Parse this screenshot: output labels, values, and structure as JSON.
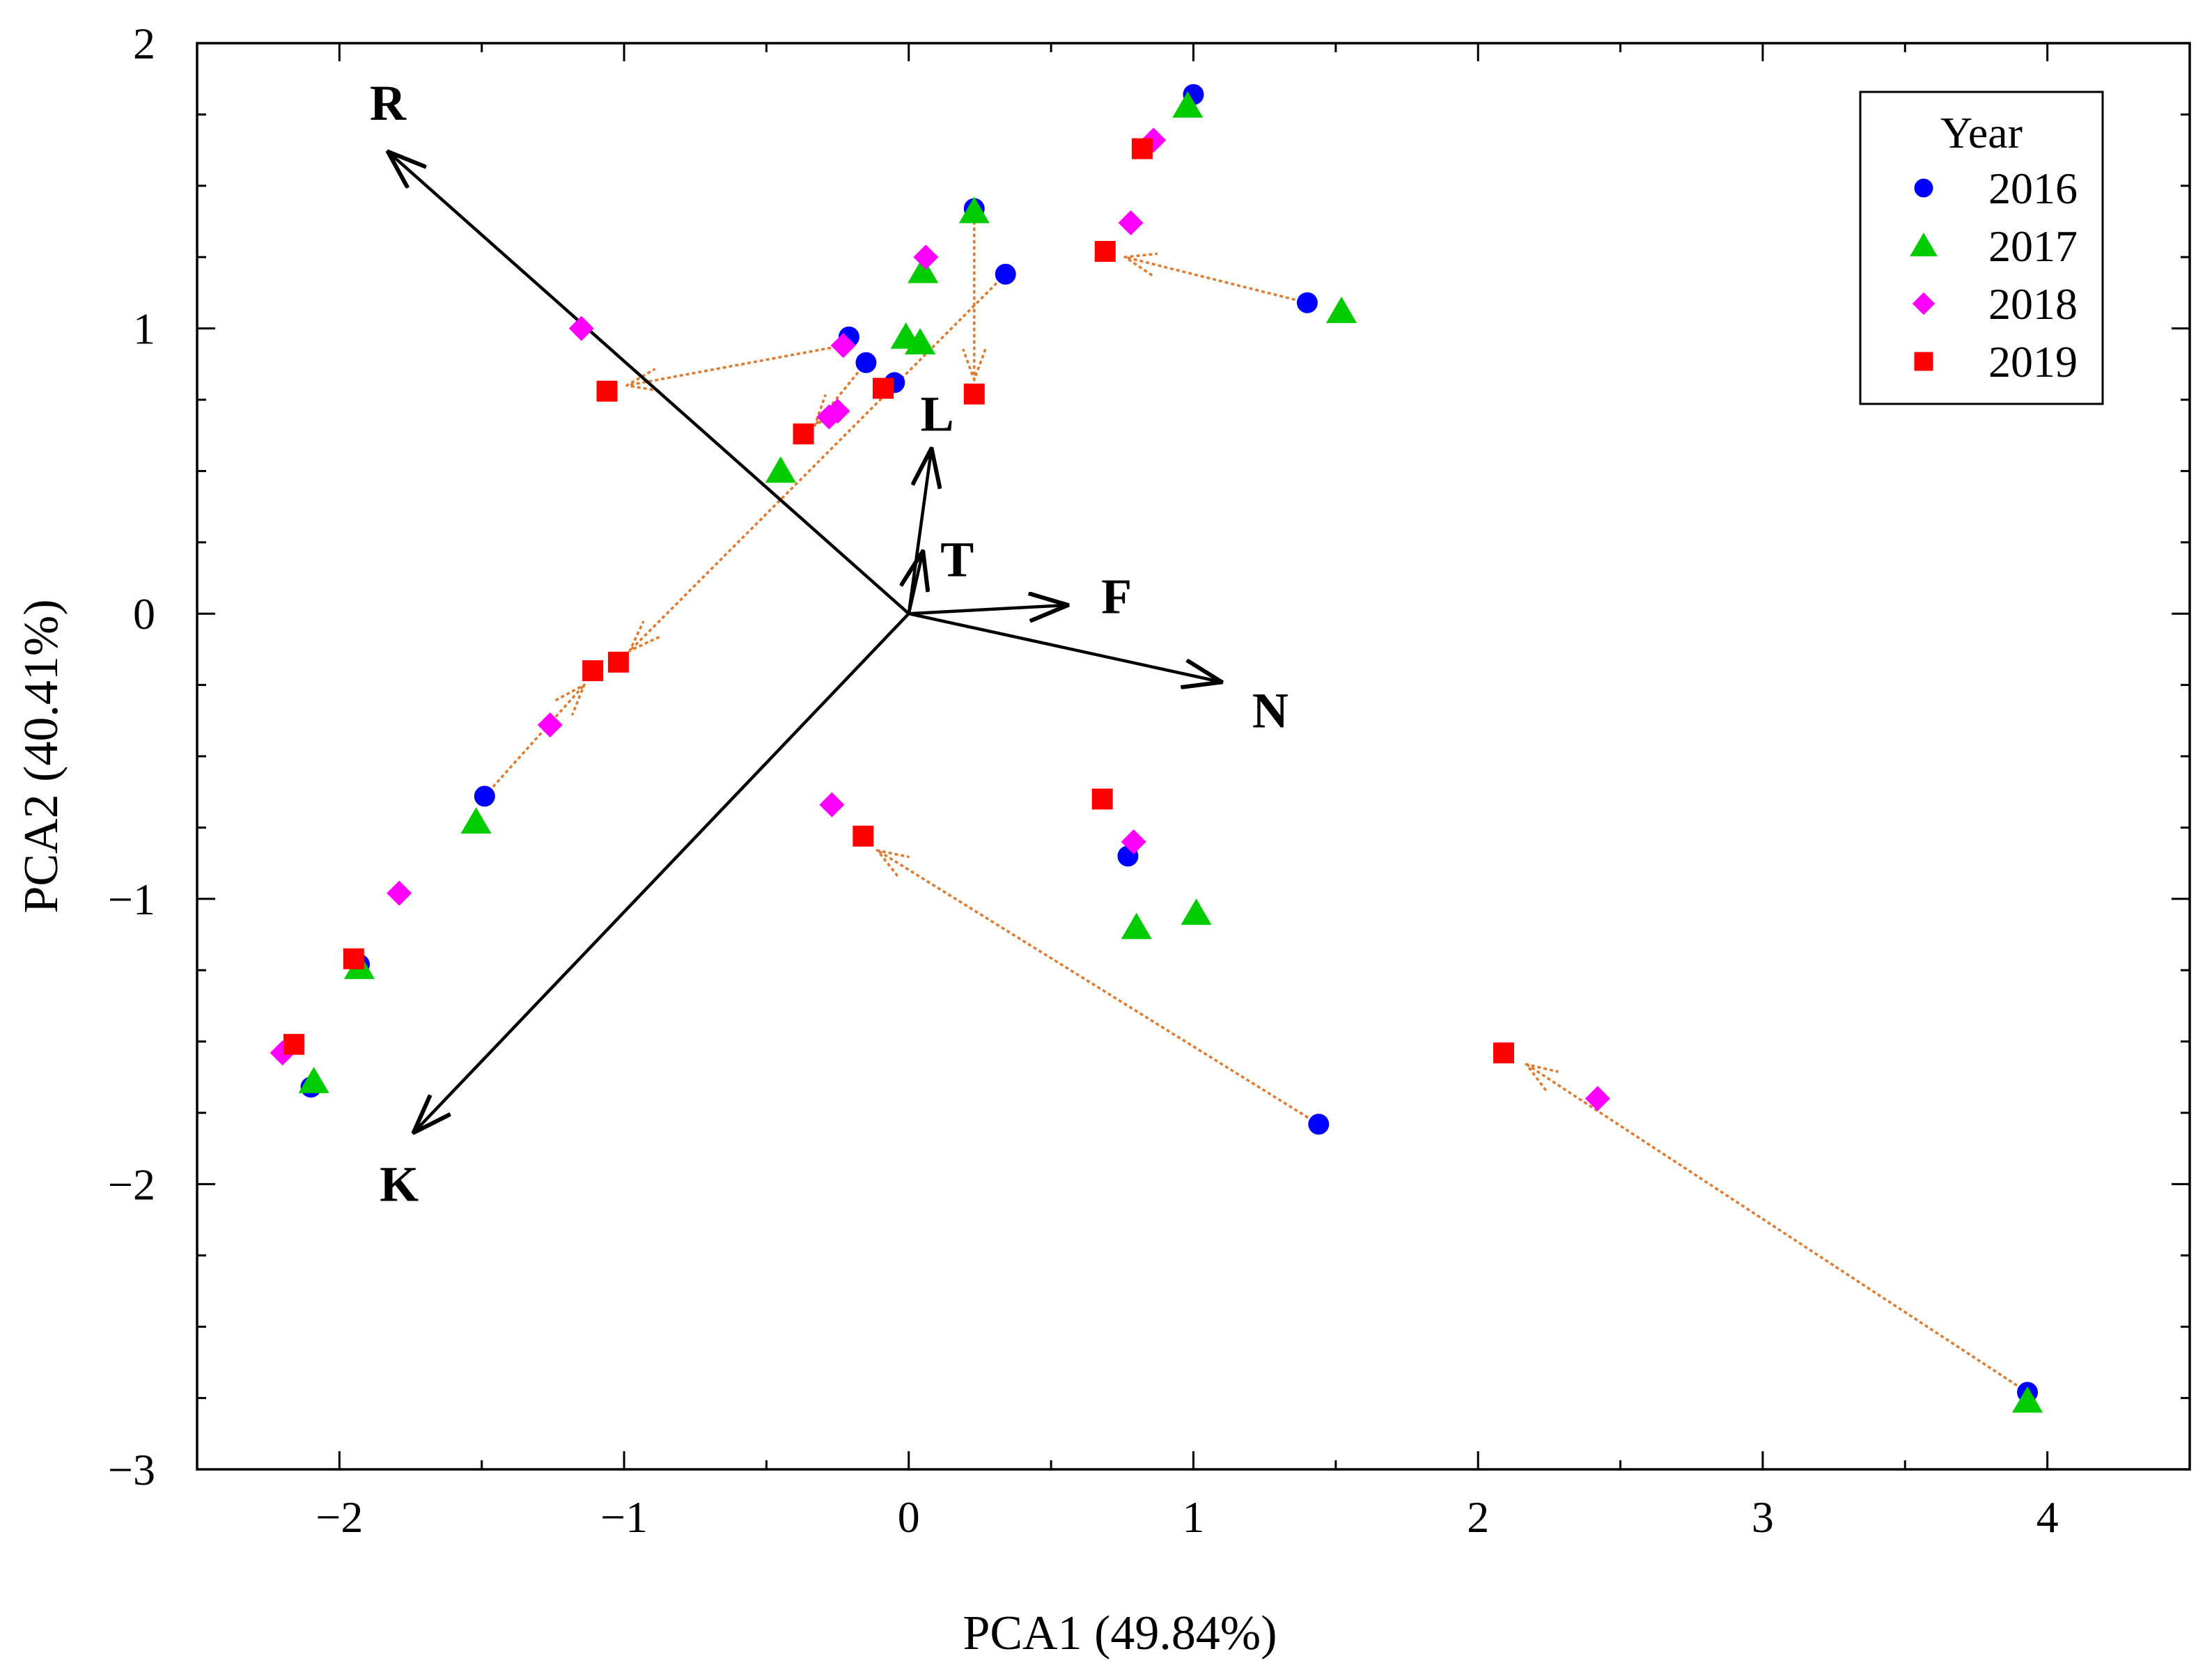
{
  "chart_data": {
    "type": "scatter",
    "title": "",
    "xlabel": "PCA1 (49.84%)",
    "ylabel": "PCA2 (40.41%)",
    "xlim": [
      -2.5,
      4.5
    ],
    "ylim": [
      -3,
      2
    ],
    "x_ticks": [
      -2,
      -1,
      0,
      1,
      2,
      3,
      4
    ],
    "x_tick_labels": [
      "−2",
      "−1",
      "0",
      "1",
      "2",
      "3",
      "4"
    ],
    "y_ticks": [
      2,
      1,
      0,
      -1,
      -2,
      -3
    ],
    "y_tick_labels": [
      "2",
      "1",
      "0",
      "−1",
      "−2",
      "−3"
    ],
    "grid": false,
    "legend": {
      "title": "Year",
      "placement": "top-right",
      "entries": [
        "2016",
        "2017",
        "2018",
        "2019"
      ]
    },
    "series": [
      {
        "name": "2016",
        "marker": "circle",
        "color": "#0000FF",
        "points": [
          [
            1.0,
            1.82
          ],
          [
            0.23,
            1.42
          ],
          [
            0.34,
            1.19
          ],
          [
            -0.21,
            0.97
          ],
          [
            -0.15,
            0.88
          ],
          [
            -0.05,
            0.81
          ],
          [
            1.4,
            1.09
          ],
          [
            -1.49,
            -0.64
          ],
          [
            -1.93,
            -1.23
          ],
          [
            -2.1,
            -1.66
          ],
          [
            0.77,
            -0.85
          ],
          [
            1.44,
            -1.79
          ],
          [
            3.93,
            -2.73
          ]
        ]
      },
      {
        "name": "2017",
        "marker": "triangle",
        "color": "#00CC00",
        "points": [
          [
            0.98,
            1.78
          ],
          [
            0.23,
            1.41
          ],
          [
            0.05,
            1.2
          ],
          [
            -0.01,
            0.97
          ],
          [
            0.04,
            0.95
          ],
          [
            1.52,
            1.06
          ],
          [
            -0.45,
            0.5
          ],
          [
            -1.52,
            -0.73
          ],
          [
            -1.93,
            -1.24
          ],
          [
            -2.09,
            -1.64
          ],
          [
            0.8,
            -1.1
          ],
          [
            1.01,
            -1.05
          ],
          [
            3.93,
            -2.76
          ]
        ]
      },
      {
        "name": "2018",
        "marker": "diamond",
        "color": "#FF00FF",
        "points": [
          [
            0.86,
            1.66
          ],
          [
            0.78,
            1.37
          ],
          [
            0.06,
            1.25
          ],
          [
            -1.15,
            1.0
          ],
          [
            -0.23,
            0.94
          ],
          [
            -0.28,
            0.69
          ],
          [
            -0.25,
            0.71
          ],
          [
            -1.26,
            -0.39
          ],
          [
            -1.79,
            -0.98
          ],
          [
            -2.2,
            -1.54
          ],
          [
            -0.27,
            -0.67
          ],
          [
            0.79,
            -0.8
          ],
          [
            2.42,
            -1.7
          ]
        ]
      },
      {
        "name": "2019",
        "marker": "square",
        "color": "#FF0000",
        "points": [
          [
            0.82,
            1.63
          ],
          [
            0.69,
            1.27
          ],
          [
            -1.06,
            0.78
          ],
          [
            -0.09,
            0.79
          ],
          [
            0.23,
            0.77
          ],
          [
            -0.37,
            0.63
          ],
          [
            -1.11,
            -0.2
          ],
          [
            -1.02,
            -0.17
          ],
          [
            -1.95,
            -1.21
          ],
          [
            -2.16,
            -1.51
          ],
          [
            -0.16,
            -0.78
          ],
          [
            0.68,
            -0.65
          ],
          [
            2.09,
            -1.54
          ]
        ]
      }
    ],
    "shift_arrows": [
      {
        "from": [
          1.4,
          1.09
        ],
        "to": [
          0.76,
          1.25
        ]
      },
      {
        "from": [
          -0.23,
          0.94
        ],
        "to": [
          -0.99,
          0.8
        ]
      },
      {
        "from": [
          0.23,
          1.42
        ],
        "to": [
          0.23,
          0.82
        ]
      },
      {
        "from": [
          -0.15,
          0.88
        ],
        "to": [
          -0.33,
          0.66
        ]
      },
      {
        "from": [
          0.34,
          1.19
        ],
        "to": [
          -0.98,
          -0.13
        ]
      },
      {
        "from": [
          -1.49,
          -0.64
        ],
        "to": [
          -1.14,
          -0.25
        ]
      },
      {
        "from": [
          1.44,
          -1.79
        ],
        "to": [
          -0.11,
          -0.83
        ]
      },
      {
        "from": [
          3.93,
          -2.73
        ],
        "to": [
          2.17,
          -1.58
        ]
      }
    ],
    "loading_vectors": [
      {
        "label": "R",
        "x": -1.83,
        "y": 1.62,
        "label_x": -1.83,
        "label_y": 1.79
      },
      {
        "label": "L",
        "x": 0.08,
        "y": 0.58,
        "label_x": 0.1,
        "label_y": 0.7
      },
      {
        "label": "T",
        "x": 0.05,
        "y": 0.22,
        "label_x": 0.17,
        "label_y": 0.19
      },
      {
        "label": "F",
        "x": 0.56,
        "y": 0.03,
        "label_x": 0.73,
        "label_y": 0.06
      },
      {
        "label": "N",
        "x": 1.1,
        "y": -0.24,
        "label_x": 1.27,
        "label_y": -0.34
      },
      {
        "label": "K",
        "x": -1.74,
        "y": -1.82,
        "label_x": -1.79,
        "label_y": -2.0
      }
    ]
  }
}
